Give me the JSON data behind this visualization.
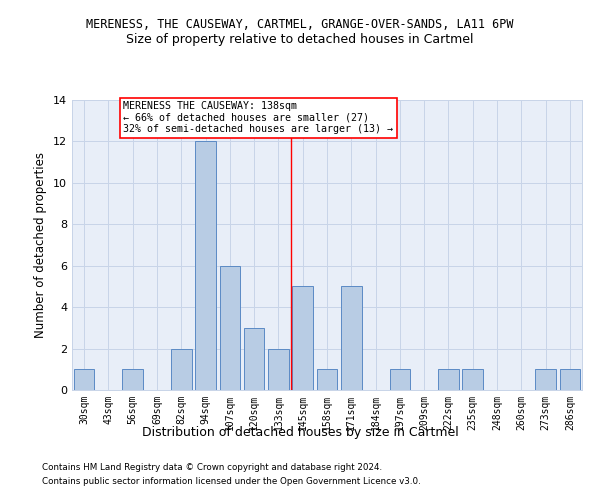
{
  "title": "MERENESS, THE CAUSEWAY, CARTMEL, GRANGE-OVER-SANDS, LA11 6PW",
  "subtitle": "Size of property relative to detached houses in Cartmel",
  "xlabel": "Distribution of detached houses by size in Cartmel",
  "ylabel": "Number of detached properties",
  "bin_labels": [
    "30sqm",
    "43sqm",
    "56sqm",
    "69sqm",
    "82sqm",
    "94sqm",
    "107sqm",
    "120sqm",
    "133sqm",
    "145sqm",
    "158sqm",
    "171sqm",
    "184sqm",
    "197sqm",
    "209sqm",
    "222sqm",
    "235sqm",
    "248sqm",
    "260sqm",
    "273sqm",
    "286sqm"
  ],
  "bar_values": [
    1,
    0,
    1,
    0,
    2,
    12,
    6,
    3,
    2,
    5,
    1,
    5,
    0,
    1,
    0,
    1,
    1,
    0,
    0,
    1,
    1
  ],
  "bar_color": "#b8cce4",
  "bar_edge_color": "#5b8ac5",
  "bar_edge_width": 0.7,
  "grid_color": "#c8d4e8",
  "background_color": "#e8eef8",
  "vline_color": "red",
  "vline_x": 8.5,
  "annotation_text": "MERENESS THE CAUSEWAY: 138sqm\n← 66% of detached houses are smaller (27)\n32% of semi-detached houses are larger (13) →",
  "annotation_box_color": "white",
  "annotation_box_edge": "red",
  "ylim": [
    0,
    14
  ],
  "yticks": [
    0,
    2,
    4,
    6,
    8,
    10,
    12,
    14
  ],
  "footer1": "Contains HM Land Registry data © Crown copyright and database right 2024.",
  "footer2": "Contains public sector information licensed under the Open Government Licence v3.0."
}
